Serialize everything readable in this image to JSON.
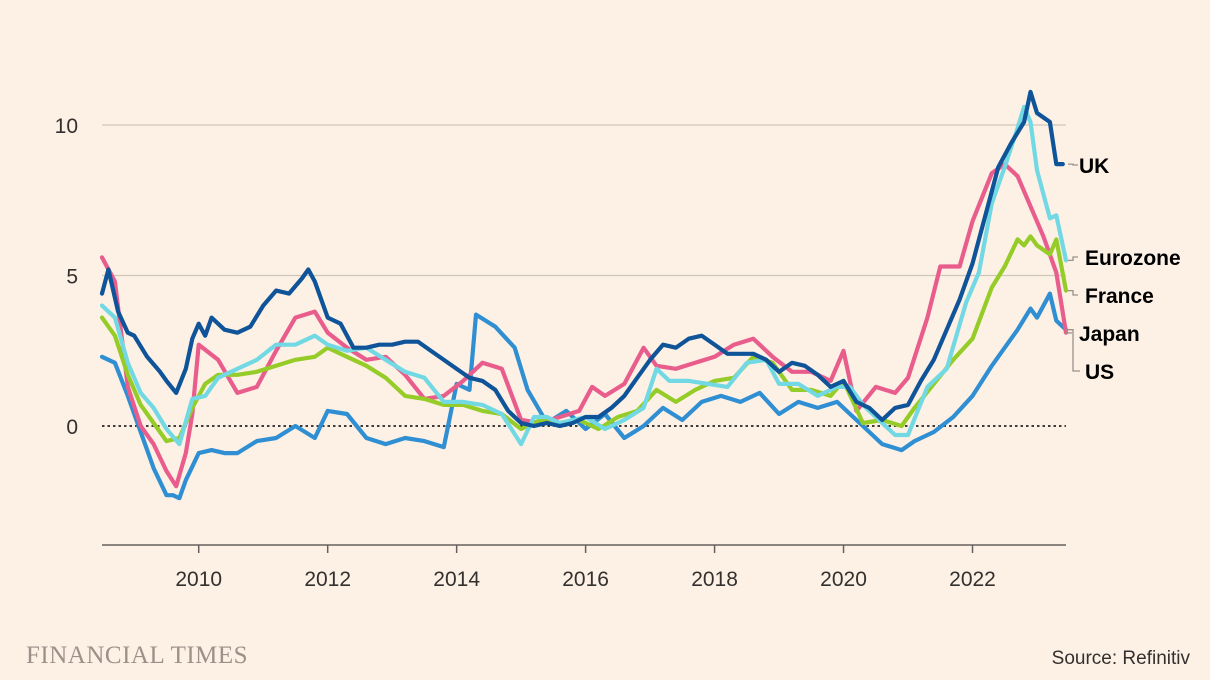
{
  "chart_data": {
    "type": "line",
    "title": "",
    "xlabel": "",
    "ylabel": "",
    "xlim": [
      2008.5,
      2023.45
    ],
    "ylim": [
      -4,
      13
    ],
    "yticks": [
      0,
      5,
      10
    ],
    "xticks": [
      2010,
      2012,
      2014,
      2016,
      2018,
      2020,
      2022
    ],
    "zero_line": "dotted",
    "legend_placement": "line-end labels on right",
    "series": [
      {
        "name": "UK",
        "color": "#0f5499",
        "x": [
          2008.5,
          2008.6,
          2008.75,
          2008.9,
          2009.0,
          2009.2,
          2009.4,
          2009.5,
          2009.65,
          2009.8,
          2009.9,
          2010.0,
          2010.1,
          2010.2,
          2010.4,
          2010.6,
          2010.8,
          2011.0,
          2011.2,
          2011.4,
          2011.6,
          2011.7,
          2011.8,
          2012.0,
          2012.2,
          2012.4,
          2012.6,
          2012.8,
          2013.0,
          2013.2,
          2013.4,
          2013.6,
          2013.8,
          2014.0,
          2014.2,
          2014.4,
          2014.6,
          2014.8,
          2015.0,
          2015.2,
          2015.4,
          2015.6,
          2015.8,
          2016.0,
          2016.2,
          2016.4,
          2016.6,
          2016.8,
          2017.0,
          2017.2,
          2017.4,
          2017.6,
          2017.8,
          2018.0,
          2018.2,
          2018.4,
          2018.6,
          2018.8,
          2019.0,
          2019.2,
          2019.4,
          2019.6,
          2019.8,
          2020.0,
          2020.2,
          2020.4,
          2020.6,
          2020.8,
          2021.0,
          2021.2,
          2021.4,
          2021.6,
          2021.8,
          2022.0,
          2022.2,
          2022.4,
          2022.6,
          2022.8,
          2022.9,
          2023.0,
          2023.2,
          2023.3,
          2023.4
        ],
        "values": [
          4.4,
          5.2,
          3.8,
          3.1,
          3.0,
          2.3,
          1.8,
          1.5,
          1.1,
          1.9,
          2.9,
          3.4,
          3.0,
          3.6,
          3.2,
          3.1,
          3.3,
          4.0,
          4.5,
          4.4,
          4.9,
          5.2,
          4.8,
          3.6,
          3.4,
          2.6,
          2.6,
          2.7,
          2.7,
          2.8,
          2.8,
          2.5,
          2.2,
          1.9,
          1.6,
          1.5,
          1.2,
          0.5,
          0.1,
          0.0,
          0.1,
          0.0,
          0.1,
          0.3,
          0.3,
          0.6,
          1.0,
          1.6,
          2.2,
          2.7,
          2.6,
          2.9,
          3.0,
          2.7,
          2.4,
          2.4,
          2.4,
          2.2,
          1.8,
          2.1,
          2.0,
          1.7,
          1.3,
          1.5,
          0.8,
          0.6,
          0.2,
          0.6,
          0.7,
          1.5,
          2.2,
          3.2,
          4.2,
          5.4,
          7.0,
          8.6,
          9.4,
          10.1,
          11.1,
          10.4,
          10.1,
          8.7,
          8.7
        ]
      },
      {
        "name": "Eurozone",
        "color": "#72d9e4",
        "x": [
          2008.5,
          2008.7,
          2008.9,
          2009.1,
          2009.3,
          2009.5,
          2009.7,
          2009.9,
          2010.1,
          2010.3,
          2010.6,
          2010.9,
          2011.2,
          2011.5,
          2011.8,
          2012.0,
          2012.3,
          2012.6,
          2012.9,
          2013.2,
          2013.5,
          2013.8,
          2014.1,
          2014.4,
          2014.7,
          2015.0,
          2015.2,
          2015.4,
          2015.6,
          2015.8,
          2016.0,
          2016.3,
          2016.6,
          2016.9,
          2017.1,
          2017.3,
          2017.6,
          2017.9,
          2018.2,
          2018.5,
          2018.8,
          2019.0,
          2019.3,
          2019.6,
          2019.9,
          2020.1,
          2020.3,
          2020.5,
          2020.8,
          2021.0,
          2021.3,
          2021.6,
          2021.9,
          2022.1,
          2022.3,
          2022.5,
          2022.7,
          2022.8,
          2022.9,
          2023.0,
          2023.2,
          2023.3,
          2023.45
        ],
        "values": [
          4.0,
          3.6,
          2.1,
          1.1,
          0.6,
          -0.1,
          -0.6,
          0.9,
          1.0,
          1.6,
          1.9,
          2.2,
          2.7,
          2.7,
          3.0,
          2.7,
          2.5,
          2.6,
          2.2,
          1.8,
          1.6,
          0.8,
          0.8,
          0.7,
          0.4,
          -0.6,
          0.3,
          0.3,
          0.1,
          0.2,
          0.3,
          -0.1,
          0.2,
          0.6,
          1.9,
          1.5,
          1.5,
          1.4,
          1.3,
          2.1,
          2.2,
          1.4,
          1.4,
          1.0,
          1.3,
          1.3,
          0.7,
          0.3,
          -0.3,
          -0.3,
          1.3,
          1.9,
          4.1,
          5.1,
          7.4,
          8.6,
          9.9,
          10.6,
          10.1,
          8.5,
          6.9,
          7.0,
          5.5
        ]
      },
      {
        "name": "France",
        "color": "#96cc28",
        "x": [
          2008.5,
          2008.7,
          2008.9,
          2009.1,
          2009.3,
          2009.5,
          2009.7,
          2009.9,
          2010.1,
          2010.3,
          2010.6,
          2010.9,
          2011.2,
          2011.5,
          2011.8,
          2012.0,
          2012.3,
          2012.6,
          2012.9,
          2013.2,
          2013.5,
          2013.8,
          2014.1,
          2014.4,
          2014.7,
          2015.0,
          2015.3,
          2015.6,
          2015.9,
          2016.2,
          2016.5,
          2016.8,
          2017.1,
          2017.4,
          2017.7,
          2018.0,
          2018.3,
          2018.6,
          2018.9,
          2019.2,
          2019.5,
          2019.8,
          2020.0,
          2020.3,
          2020.6,
          2020.9,
          2021.1,
          2021.4,
          2021.7,
          2022.0,
          2022.3,
          2022.5,
          2022.7,
          2022.8,
          2022.9,
          2023.0,
          2023.2,
          2023.3,
          2023.45
        ],
        "values": [
          3.6,
          3.0,
          1.7,
          0.7,
          0.1,
          -0.5,
          -0.4,
          0.6,
          1.4,
          1.7,
          1.7,
          1.8,
          2.0,
          2.2,
          2.3,
          2.6,
          2.3,
          2.0,
          1.6,
          1.0,
          0.9,
          0.7,
          0.7,
          0.5,
          0.4,
          -0.1,
          0.2,
          0.1,
          0.2,
          -0.1,
          0.3,
          0.5,
          1.2,
          0.8,
          1.2,
          1.5,
          1.6,
          2.3,
          2.1,
          1.2,
          1.2,
          1.0,
          1.5,
          0.1,
          0.2,
          0.0,
          0.6,
          1.4,
          2.2,
          2.9,
          4.6,
          5.3,
          6.2,
          6.0,
          6.3,
          6.0,
          5.7,
          6.2,
          4.5
        ]
      },
      {
        "name": "Japan",
        "color": "#e95d8c",
        "x": [
          2008.5,
          2008.7,
          2008.9,
          2009.1,
          2009.3,
          2009.5,
          2009.65,
          2009.8,
          2009.9,
          2010.0,
          2010.3,
          2010.6,
          2010.9,
          2011.2,
          2011.5,
          2011.8,
          2012.0,
          2012.3,
          2012.6,
          2012.9,
          2013.2,
          2013.5,
          2013.8,
          2014.1,
          2014.4,
          2014.7,
          2015.0,
          2015.3,
          2015.6,
          2015.9,
          2016.1,
          2016.3,
          2016.6,
          2016.9,
          2017.1,
          2017.4,
          2017.7,
          2018.0,
          2018.3,
          2018.6,
          2018.9,
          2019.2,
          2019.5,
          2019.8,
          2020.0,
          2020.2,
          2020.5,
          2020.8,
          2021.0,
          2021.3,
          2021.5,
          2021.8,
          2022.0,
          2022.3,
          2022.5,
          2022.7,
          2022.9,
          2023.1,
          2023.3,
          2023.45
        ],
        "values": [
          5.6,
          4.8,
          1.3,
          0.0,
          -0.6,
          -1.5,
          -2.0,
          -0.9,
          0.4,
          2.7,
          2.2,
          1.1,
          1.3,
          2.5,
          3.6,
          3.8,
          3.1,
          2.6,
          2.2,
          2.3,
          1.7,
          0.9,
          1.0,
          1.5,
          2.1,
          1.9,
          0.2,
          0.1,
          0.3,
          0.5,
          1.3,
          1.0,
          1.4,
          2.6,
          2.0,
          1.9,
          2.1,
          2.3,
          2.7,
          2.9,
          2.3,
          1.8,
          1.8,
          1.5,
          2.5,
          0.5,
          1.3,
          1.1,
          1.6,
          3.6,
          5.3,
          5.3,
          6.8,
          8.4,
          8.7,
          8.3,
          7.3,
          6.3,
          5.1,
          3.1
        ]
      },
      {
        "name": "US",
        "color": "#2f8fd2",
        "x": [
          2008.5,
          2008.7,
          2008.9,
          2009.1,
          2009.3,
          2009.5,
          2009.6,
          2009.7,
          2009.8,
          2010.0,
          2010.2,
          2010.4,
          2010.6,
          2010.9,
          2011.2,
          2011.5,
          2011.8,
          2012.0,
          2012.3,
          2012.6,
          2012.9,
          2013.2,
          2013.5,
          2013.8,
          2014.0,
          2014.2,
          2014.3,
          2014.6,
          2014.9,
          2015.1,
          2015.4,
          2015.7,
          2016.0,
          2016.3,
          2016.6,
          2016.9,
          2017.2,
          2017.5,
          2017.8,
          2018.1,
          2018.4,
          2018.7,
          2019.0,
          2019.3,
          2019.6,
          2019.9,
          2020.1,
          2020.3,
          2020.6,
          2020.9,
          2021.1,
          2021.4,
          2021.7,
          2022.0,
          2022.3,
          2022.5,
          2022.7,
          2022.9,
          2023.0,
          2023.2,
          2023.3,
          2023.45
        ],
        "values": [
          2.3,
          2.1,
          1.0,
          -0.2,
          -1.4,
          -2.3,
          -2.3,
          -2.4,
          -1.8,
          -0.9,
          -0.8,
          -0.9,
          -0.9,
          -0.5,
          -0.4,
          0.0,
          -0.4,
          0.5,
          0.4,
          -0.4,
          -0.6,
          -0.4,
          -0.5,
          -0.7,
          1.4,
          1.2,
          3.7,
          3.3,
          2.6,
          1.2,
          0.1,
          0.5,
          -0.1,
          0.4,
          -0.4,
          0.0,
          0.6,
          0.2,
          0.8,
          1.0,
          0.8,
          1.1,
          0.4,
          0.8,
          0.6,
          0.8,
          0.4,
          0.0,
          -0.6,
          -0.8,
          -0.5,
          -0.2,
          0.3,
          1.0,
          2.0,
          2.6,
          3.2,
          3.9,
          3.6,
          4.4,
          3.5,
          3.2
        ]
      }
    ],
    "draw_order": [
      "US",
      "Japan",
      "France",
      "Eurozone",
      "UK"
    ]
  },
  "footer": {
    "logo_text": "FINANCIAL TIMES",
    "source": "Source: Refinitiv"
  },
  "colors": {
    "background": "#fdf1e6",
    "grid": "#cec6b9",
    "axis": "#66605c",
    "text": "#33302e"
  }
}
